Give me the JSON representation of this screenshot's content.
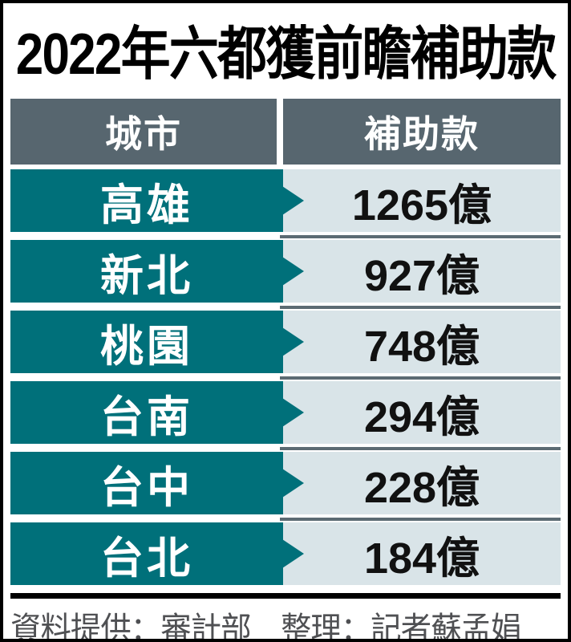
{
  "title": "2022年六都獲前瞻補助款",
  "table": {
    "headers": {
      "city": "城市",
      "amount": "補助款"
    },
    "rows": [
      {
        "city": "高雄",
        "amount": "1265億"
      },
      {
        "city": "新北",
        "amount": "927億"
      },
      {
        "city": "桃園",
        "amount": "748億"
      },
      {
        "city": "台南",
        "amount": "294億"
      },
      {
        "city": "台中",
        "amount": "228億"
      },
      {
        "city": "台北",
        "amount": "184億"
      }
    ]
  },
  "footer": {
    "credit": "資料提供：審計部　整理：記者蘇孟娟"
  },
  "colors": {
    "teal": "#00707a",
    "header_gray": "#57666f",
    "cell_light": "#d9e4e8",
    "divider": "#5c6b73",
    "footer_text": "#4f5053",
    "frame_black": "#000000"
  },
  "chart_data": {
    "type": "table",
    "title": "2022年六都獲前瞻補助款",
    "columns": [
      "城市",
      "補助款"
    ],
    "categories": [
      "高雄",
      "新北",
      "桃園",
      "台南",
      "台中",
      "台北"
    ],
    "values": [
      1265,
      927,
      748,
      294,
      228,
      184
    ],
    "unit": "億",
    "source": "資料提供：審計部　整理：記者蘇孟娟"
  }
}
